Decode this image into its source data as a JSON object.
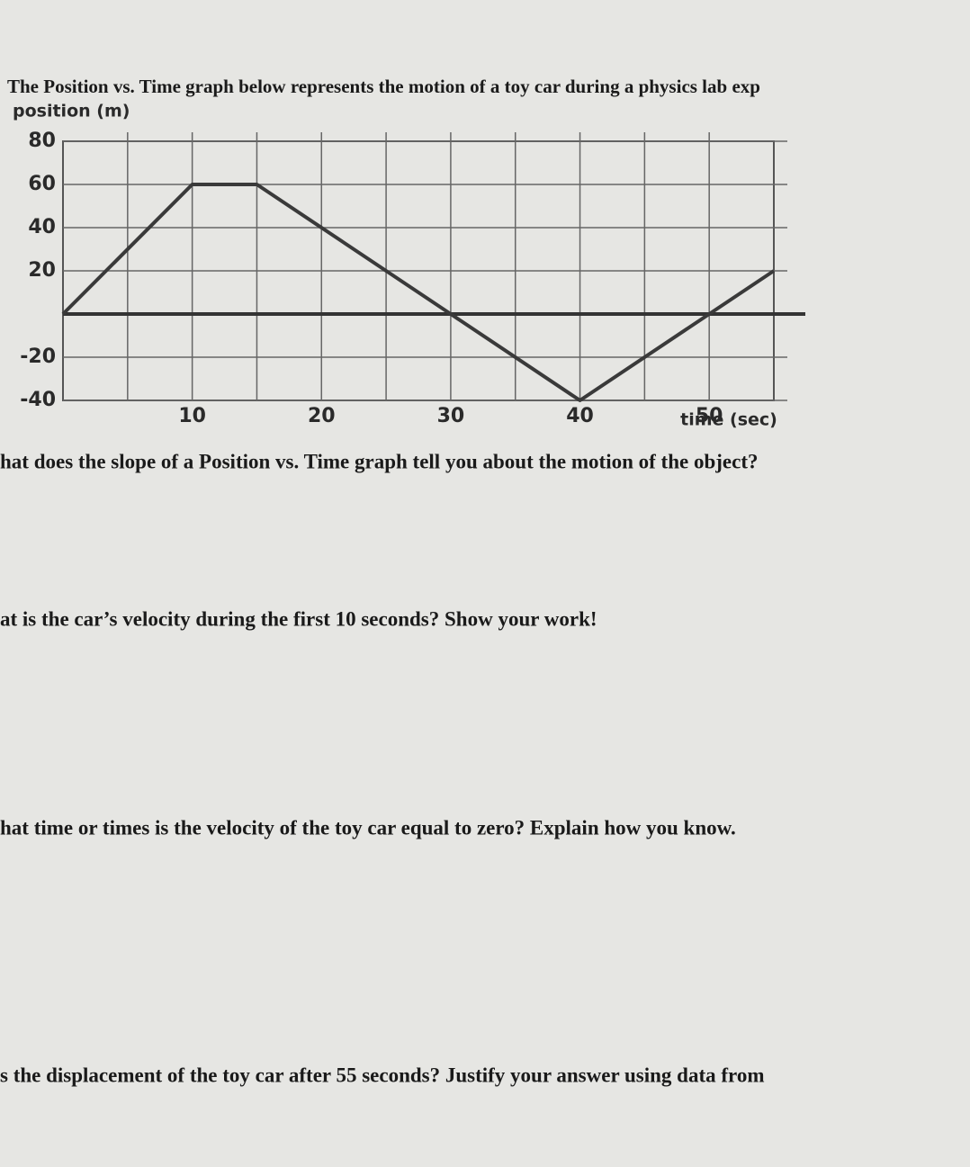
{
  "header": {
    "intro": "The Position vs. Time graph below represents the motion of a toy car during a physics lab exp"
  },
  "chart_data": {
    "type": "line",
    "y_label": "position (m)",
    "x_label": "time (sec)",
    "x": [
      0,
      10,
      15,
      30,
      40,
      55
    ],
    "series": [
      {
        "color": "#3a3a3a",
        "values": [
          0,
          60,
          60,
          0,
          -40,
          20
        ]
      }
    ],
    "xlim": [
      0,
      55
    ],
    "xticks": [
      10,
      20,
      30,
      40,
      50
    ],
    "ylim": [
      -40,
      80
    ],
    "yticks": [
      80,
      60,
      40,
      20,
      -20,
      -40
    ],
    "grid": true
  },
  "questions": [
    "hat does the slope of a Position vs. Time graph tell you about the motion of the object?",
    "at is the car’s velocity during the first 10 seconds? Show your work!",
    "hat time or times is the velocity of the toy car equal to zero? Explain how you know.",
    "s the displacement of the toy car after 55 seconds? Justify your answer using data from"
  ]
}
